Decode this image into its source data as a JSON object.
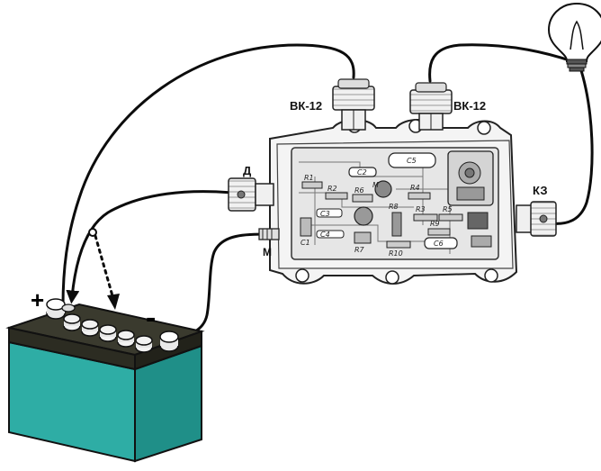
{
  "labels": {
    "connector_left_top": "ВК-12",
    "connector_right_top": "ВК-12",
    "connector_d": "Д",
    "connector_m": "М",
    "connector_kz": "КЗ",
    "battery_plus": "+",
    "battery_minus": "-"
  },
  "components": {
    "c5": "C5",
    "c2": "C2",
    "r1": "R1",
    "r2": "R2",
    "r6": "R6",
    "r7": "R7",
    "r8": "R8",
    "r10": "R10",
    "c3": "C3",
    "c4": "C4",
    "c1": "C1",
    "m": "M",
    "r4": "R4",
    "r3": "R3",
    "r5": "R5",
    "r9": "R9",
    "c6": "C6"
  },
  "colors": {
    "battery_body": "#2eada5",
    "battery_body_shade": "#1f8f88",
    "battery_lid": "#3a3a2e",
    "wire": "#0c0c0c",
    "box_fill": "#f4f4f4",
    "board_fill": "#e6e6e6"
  }
}
